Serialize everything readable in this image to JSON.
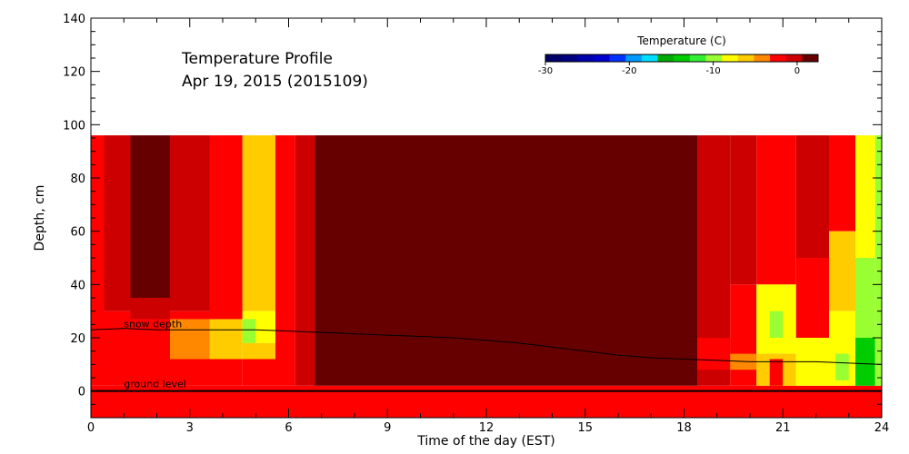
{
  "chart_data": {
    "type": "heatmap",
    "title": "Temperature Profile",
    "subtitle": "Apr 19, 2015 (2015109)",
    "xlabel": "Time of the day (EST)",
    "ylabel": "Depth, cm",
    "x_ticks": [
      "0",
      "3",
      "6",
      "9",
      "12",
      "15",
      "18",
      "21",
      "24"
    ],
    "y_ticks": [
      "0",
      "20",
      "40",
      "60",
      "80",
      "100",
      "120",
      "140"
    ],
    "xlim": [
      0,
      24
    ],
    "ylim": [
      -10,
      140
    ],
    "colorbar": {
      "title": "Temperature (C)",
      "tick_labels": [
        "-30",
        "-20",
        "-10",
        "0"
      ],
      "range": [
        -30,
        2.5
      ],
      "colors": [
        "#000066",
        "#000080",
        "#0000aa",
        "#0000cc",
        "#0033ff",
        "#0099ff",
        "#00ddff",
        "#00aa00",
        "#00cc00",
        "#33ee33",
        "#99ff33",
        "#ffff00",
        "#ffcc00",
        "#ff8800",
        "#ff0000",
        "#cc0000",
        "#660000"
      ]
    },
    "colors": {
      "warm": "#ff0000",
      "hot": "#660000",
      "mid": "#cc0000",
      "orange": "#ff8800",
      "gold": "#ffcc00",
      "yellow": "#ffff00",
      "lime": "#99ff33",
      "green": "#00cc00"
    },
    "series": [
      {
        "name": "snow depth",
        "x": [
          0,
          1,
          2,
          3,
          4,
          5,
          6,
          7,
          8,
          9,
          10,
          11,
          12,
          13,
          14,
          15,
          16,
          17,
          18,
          19,
          20,
          21,
          22,
          23,
          24
        ],
        "y": [
          23,
          23.5,
          23,
          23,
          23,
          23,
          22.5,
          22,
          21.5,
          21,
          20.5,
          20,
          19,
          18,
          16.5,
          15,
          13.5,
          12.5,
          12,
          11.5,
          11,
          11,
          11,
          10.5,
          10
        ]
      },
      {
        "name": "ground level",
        "x": [
          0,
          24
        ],
        "y": [
          0,
          0
        ]
      }
    ],
    "heatmap_rects": [
      {
        "x0": 0,
        "x1": 24,
        "y0": -10,
        "y1": 2,
        "color": "warm"
      },
      {
        "x0": 0,
        "x1": 0.4,
        "y0": 2,
        "y1": 96,
        "color": "warm"
      },
      {
        "x0": 0.4,
        "x1": 1.2,
        "y0": 30,
        "y1": 96,
        "color": "mid"
      },
      {
        "x0": 0.4,
        "x1": 1.2,
        "y0": 2,
        "y1": 30,
        "color": "warm"
      },
      {
        "x0": 1.2,
        "x1": 2.4,
        "y0": 35,
        "y1": 96,
        "color": "hot"
      },
      {
        "x0": 1.2,
        "x1": 2.4,
        "y0": 27,
        "y1": 35,
        "color": "mid"
      },
      {
        "x0": 1.2,
        "x1": 2.4,
        "y0": 2,
        "y1": 27,
        "color": "warm"
      },
      {
        "x0": 2.4,
        "x1": 3.6,
        "y0": 30,
        "y1": 96,
        "color": "mid"
      },
      {
        "x0": 2.4,
        "x1": 3.6,
        "y0": 12,
        "y1": 27,
        "color": "orange"
      },
      {
        "x0": 2.4,
        "x1": 3.6,
        "y0": 2,
        "y1": 12,
        "color": "warm"
      },
      {
        "x0": 2.4,
        "x1": 3.6,
        "y0": 27,
        "y1": 30,
        "color": "warm"
      },
      {
        "x0": 3.6,
        "x1": 4.6,
        "y0": 27,
        "y1": 96,
        "color": "warm"
      },
      {
        "x0": 3.6,
        "x1": 4.6,
        "y0": 12,
        "y1": 27,
        "color": "gold"
      },
      {
        "x0": 3.6,
        "x1": 4.6,
        "y0": 2,
        "y1": 12,
        "color": "warm"
      },
      {
        "x0": 4.6,
        "x1": 5.6,
        "y0": 30,
        "y1": 96,
        "color": "gold"
      },
      {
        "x0": 4.6,
        "x1": 5.6,
        "y0": 18,
        "y1": 30,
        "color": "yellow"
      },
      {
        "x0": 4.6,
        "x1": 5.0,
        "y0": 18,
        "y1": 27,
        "color": "lime"
      },
      {
        "x0": 4.6,
        "x1": 5.6,
        "y0": 12,
        "y1": 18,
        "color": "gold"
      },
      {
        "x0": 4.6,
        "x1": 5.6,
        "y0": 2,
        "y1": 12,
        "color": "warm"
      },
      {
        "x0": 5.6,
        "x1": 6.2,
        "y0": 20,
        "y1": 96,
        "color": "warm"
      },
      {
        "x0": 5.6,
        "x1": 6.2,
        "y0": 2,
        "y1": 20,
        "color": "warm"
      },
      {
        "x0": 6.2,
        "x1": 6.8,
        "y0": 2,
        "y1": 96,
        "color": "mid"
      },
      {
        "x0": 6.8,
        "x1": 18.4,
        "y0": 2,
        "y1": 96,
        "color": "hot"
      },
      {
        "x0": 18.4,
        "x1": 19.4,
        "y0": 2,
        "y1": 96,
        "color": "mid"
      },
      {
        "x0": 18.4,
        "x1": 19.4,
        "y0": 8,
        "y1": 20,
        "color": "warm"
      },
      {
        "x0": 19.4,
        "x1": 20.2,
        "y0": 40,
        "y1": 96,
        "color": "mid"
      },
      {
        "x0": 19.4,
        "x1": 20.2,
        "y0": 2,
        "y1": 40,
        "color": "warm"
      },
      {
        "x0": 19.4,
        "x1": 20.2,
        "y0": 8,
        "y1": 14,
        "color": "orange"
      },
      {
        "x0": 20.2,
        "x1": 21.4,
        "y0": 40,
        "y1": 96,
        "color": "warm"
      },
      {
        "x0": 20.2,
        "x1": 21.4,
        "y0": 14,
        "y1": 40,
        "color": "yellow"
      },
      {
        "x0": 20.6,
        "x1": 21.0,
        "y0": 20,
        "y1": 30,
        "color": "lime"
      },
      {
        "x0": 20.2,
        "x1": 21.4,
        "y0": 2,
        "y1": 14,
        "color": "gold"
      },
      {
        "x0": 20.6,
        "x1": 21.0,
        "y0": 2,
        "y1": 12,
        "color": "warm"
      },
      {
        "x0": 21.4,
        "x1": 22.4,
        "y0": 50,
        "y1": 96,
        "color": "mid"
      },
      {
        "x0": 21.4,
        "x1": 22.4,
        "y0": 20,
        "y1": 50,
        "color": "warm"
      },
      {
        "x0": 21.4,
        "x1": 22.4,
        "y0": 2,
        "y1": 20,
        "color": "yellow"
      },
      {
        "x0": 22.4,
        "x1": 23.2,
        "y0": 60,
        "y1": 96,
        "color": "warm"
      },
      {
        "x0": 22.4,
        "x1": 23.2,
        "y0": 30,
        "y1": 60,
        "color": "gold"
      },
      {
        "x0": 22.4,
        "x1": 23.2,
        "y0": 2,
        "y1": 30,
        "color": "yellow"
      },
      {
        "x0": 22.6,
        "x1": 23.0,
        "y0": 4,
        "y1": 14,
        "color": "lime"
      },
      {
        "x0": 23.2,
        "x1": 23.8,
        "y0": 50,
        "y1": 96,
        "color": "yellow"
      },
      {
        "x0": 23.2,
        "x1": 23.8,
        "y0": 20,
        "y1": 50,
        "color": "lime"
      },
      {
        "x0": 23.2,
        "x1": 23.8,
        "y0": 2,
        "y1": 20,
        "color": "green"
      },
      {
        "x0": 23.8,
        "x1": 24,
        "y0": 2,
        "y1": 96,
        "color": "lime"
      }
    ],
    "annotations": [
      {
        "text": "snow depth",
        "x": 1.0,
        "y": 24
      },
      {
        "text": "ground level",
        "x": 1.0,
        "y": 1.5
      }
    ]
  }
}
